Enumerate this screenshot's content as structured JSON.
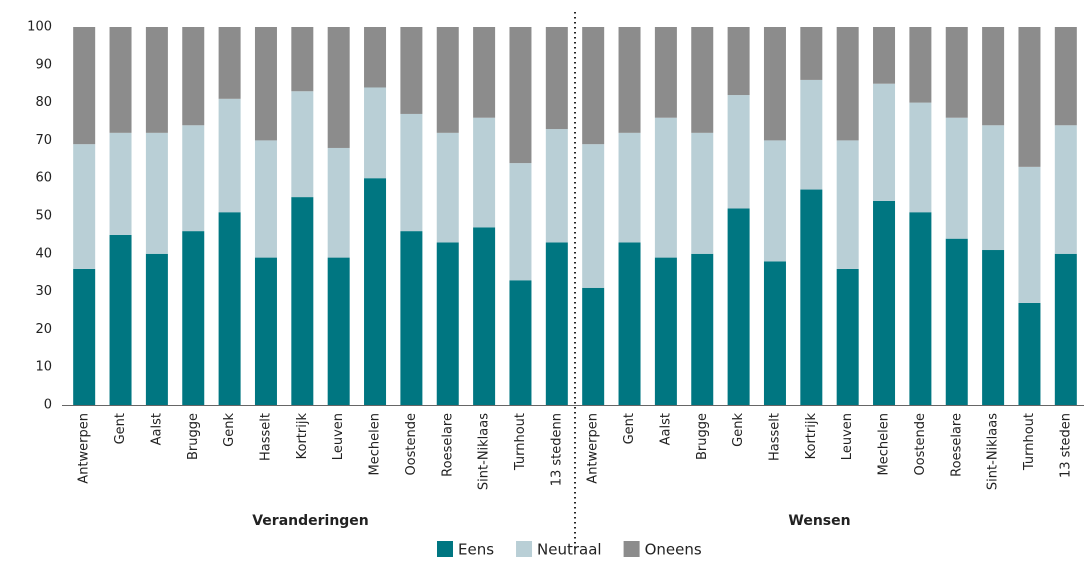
{
  "chart_data": {
    "type": "stacked_bar",
    "categories": [
      "Antwerpen",
      "Gent",
      "Aalst",
      "Brugge",
      "Genk",
      "Hasselt",
      "Kortrijk",
      "Leuven",
      "Mechelen",
      "Oostende",
      "Roeselare",
      "Sint-Niklaas",
      "Turnhout",
      "13 stedenn",
      "Antwerpen",
      "Gent",
      "Aalst",
      "Brugge",
      "Genk",
      "Hasselt",
      "Kortrijk",
      "Leuven",
      "Mechelen",
      "Oostende",
      "Roeselare",
      "Sint-Niklaas",
      "Turnhout",
      "13 steden"
    ],
    "series": [
      {
        "name": "Eens",
        "color": "#007681",
        "values": [
          36,
          45,
          40,
          46,
          51,
          39,
          55,
          39,
          60,
          46,
          43,
          47,
          33,
          43,
          31,
          43,
          39,
          40,
          52,
          38,
          57,
          36,
          54,
          51,
          44,
          41,
          27,
          40
        ]
      },
      {
        "name": "Neutraal",
        "color": "#b9cfd6",
        "values": [
          33,
          27,
          32,
          28,
          30,
          31,
          28,
          29,
          24,
          31,
          29,
          29,
          31,
          30,
          38,
          29,
          37,
          32,
          30,
          32,
          29,
          34,
          31,
          29,
          32,
          33,
          36,
          34
        ]
      },
      {
        "name": "Oneens",
        "color": "#8c8c8c",
        "values": [
          31,
          28,
          28,
          26,
          19,
          30,
          17,
          32,
          16,
          23,
          28,
          24,
          36,
          27,
          31,
          28,
          24,
          28,
          18,
          30,
          14,
          30,
          15,
          20,
          24,
          26,
          37,
          26
        ]
      }
    ],
    "annotations": [
      "Veranderingen",
      "Wensen"
    ],
    "ylim": [
      0,
      100
    ],
    "yticks": [
      0,
      10,
      20,
      30,
      40,
      50,
      60,
      70,
      80,
      90,
      100
    ],
    "grid": false
  }
}
